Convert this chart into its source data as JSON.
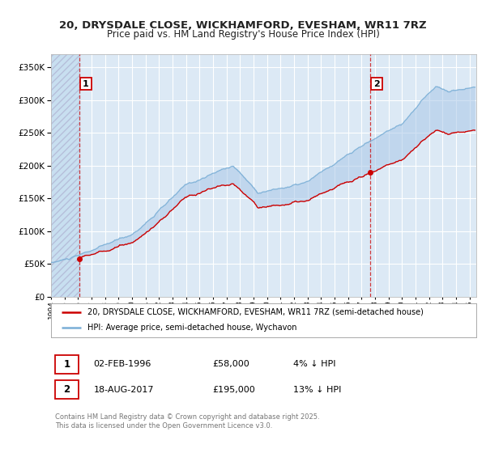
{
  "title_line1": "20, DRYSDALE CLOSE, WICKHAMFORD, EVESHAM, WR11 7RZ",
  "title_line2": "Price paid vs. HM Land Registry's House Price Index (HPI)",
  "legend_line1": "20, DRYSDALE CLOSE, WICKHAMFORD, EVESHAM, WR11 7RZ (semi-detached house)",
  "legend_line2": "HPI: Average price, semi-detached house, Wychavon",
  "footer": "Contains HM Land Registry data © Crown copyright and database right 2025.\nThis data is licensed under the Open Government Licence v3.0.",
  "sale1_date": "02-FEB-1996",
  "sale1_price": "£58,000",
  "sale1_hpi": "4% ↓ HPI",
  "sale1_year": 1996.09,
  "sale1_value": 58000,
  "sale2_date": "18-AUG-2017",
  "sale2_price": "£195,000",
  "sale2_hpi": "13% ↓ HPI",
  "sale2_year": 2017.63,
  "sale2_value": 195000,
  "xmin": 1994.0,
  "xmax": 2025.5,
  "ymin": 0,
  "ymax": 370000,
  "background_color": "#dce9f5",
  "red_color": "#cc0000",
  "blue_color": "#7aaed6",
  "grid_color": "#ffffff",
  "marker_box_color": "#cc0000",
  "title_fontsize": 9.5,
  "subtitle_fontsize": 8.5
}
